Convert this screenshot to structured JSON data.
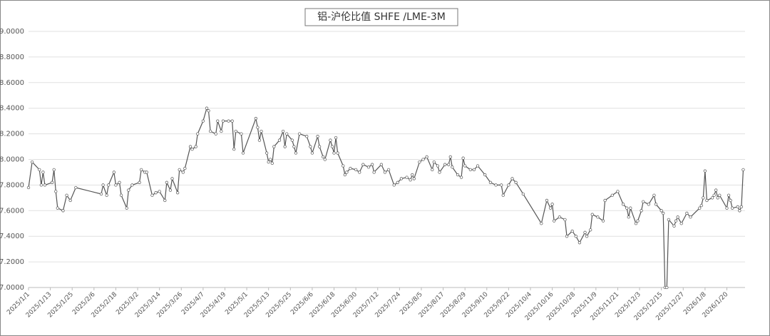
{
  "chart_data": {
    "type": "line",
    "title": "铝-沪伦比值 SHFE /LME-3M",
    "x": [
      "2025/1/1",
      "2025/1/3",
      "2025/1/7",
      "2025/1/8",
      "2025/1/9",
      "2025/1/10",
      "2025/1/14",
      "2025/1/15",
      "2025/1/16",
      "2025/1/17",
      "2025/1/20",
      "2025/1/22",
      "2025/1/24",
      "2025/1/27",
      "2025/2/10",
      "2025/2/11",
      "2025/2/13",
      "2025/2/14",
      "2025/2/17",
      "2025/2/18",
      "2025/2/20",
      "2025/2/21",
      "2025/2/24",
      "2025/2/25",
      "2025/2/27",
      "2025/3/3",
      "2025/3/4",
      "2025/3/6",
      "2025/3/7",
      "2025/3/10",
      "2025/3/12",
      "2025/3/14",
      "2025/3/17",
      "2025/3/18",
      "2025/3/20",
      "2025/3/21",
      "2025/3/24",
      "2025/3/25",
      "2025/3/27",
      "2025/3/28",
      "2025/3/31",
      "2025/4/1",
      "2025/4/3",
      "2025/4/4",
      "2025/4/7",
      "2025/4/9",
      "2025/4/10",
      "2025/4/11",
      "2025/4/14",
      "2025/4/15",
      "2025/4/17",
      "2025/4/18",
      "2025/4/21",
      "2025/4/23",
      "2025/4/24",
      "2025/4/25",
      "2025/4/28",
      "2025/4/29",
      "2025/5/6",
      "2025/5/7",
      "2025/5/8",
      "2025/5/9",
      "2025/5/12",
      "2025/5/13",
      "2025/5/14",
      "2025/5/15",
      "2025/5/16",
      "2025/5/19",
      "2025/5/21",
      "2025/5/22",
      "2025/5/23",
      "2025/5/26",
      "2025/5/27",
      "2025/5/28",
      "2025/5/30",
      "2025/6/3",
      "2025/6/5",
      "2025/6/6",
      "2025/6/9",
      "2025/6/10",
      "2025/6/12",
      "2025/6/13",
      "2025/6/16",
      "2025/6/17",
      "2025/6/18",
      "2025/6/19",
      "2025/6/20",
      "2025/6/23",
      "2025/6/24",
      "2025/6/25",
      "2025/6/27",
      "2025/6/30",
      "2025/7/2",
      "2025/7/4",
      "2025/7/7",
      "2025/7/9",
      "2025/7/10",
      "2025/7/14",
      "2025/7/16",
      "2025/7/18",
      "2025/7/21",
      "2025/7/23",
      "2025/7/25",
      "2025/7/28",
      "2025/7/30",
      "2025/7/31",
      "2025/8/1",
      "2025/8/4",
      "2025/8/6",
      "2025/8/8",
      "2025/8/11",
      "2025/8/12",
      "2025/8/14",
      "2025/8/15",
      "2025/8/18",
      "2025/8/20",
      "2025/8/21",
      "2025/8/22",
      "2025/8/25",
      "2025/8/27",
      "2025/8/28",
      "2025/8/29",
      "2025/9/1",
      "2025/9/3",
      "2025/9/5",
      "2025/9/9",
      "2025/9/12",
      "2025/9/15",
      "2025/9/18",
      "2025/9/19",
      "2025/9/22",
      "2025/9/24",
      "2025/9/26",
      "2025/9/30",
      "2025/10/10",
      "2025/10/13",
      "2025/10/15",
      "2025/10/16",
      "2025/10/17",
      "2025/10/20",
      "2025/10/23",
      "2025/10/24",
      "2025/10/27",
      "2025/10/29",
      "2025/10/31",
      "2025/11/3",
      "2025/11/4",
      "2025/11/6",
      "2025/11/7",
      "2025/11/10",
      "2025/11/13",
      "2025/11/14",
      "2025/11/18",
      "2025/11/21",
      "2025/11/24",
      "2025/11/26",
      "2025/11/27",
      "2025/11/28",
      "2025/12/1",
      "2025/12/2",
      "2025/12/4",
      "2025/12/5",
      "2025/12/8",
      "2025/12/11",
      "2025/12/12",
      "2025/12/15",
      "2025/12/16",
      "2025/12/17",
      "2025/12/18",
      "2025/12/19",
      "2025/12/22",
      "2025/12/23",
      "2025/12/24",
      "2025/12/26",
      "2025/12/29",
      "2025/12/31",
      "2026/1/5",
      "2026/1/6",
      "2026/1/7",
      "2026/1/8",
      "2026/1/9",
      "2026/1/12",
      "2026/1/13",
      "2026/1/14",
      "2026/1/15",
      "2026/1/16",
      "2026/1/20",
      "2026/1/21",
      "2026/1/22",
      "2026/1/23",
      "2026/1/26",
      "2026/1/27",
      "2026/1/28",
      "2026/1/29"
    ],
    "series": [
      {
        "name": "铝-沪伦比值 SHFE /LME-3M",
        "color": "#555555",
        "values": [
          7.78,
          7.98,
          7.92,
          7.8,
          7.9,
          7.8,
          7.82,
          7.92,
          7.75,
          7.62,
          7.6,
          7.72,
          7.68,
          7.78,
          7.73,
          7.8,
          7.72,
          7.8,
          7.9,
          7.8,
          7.82,
          7.72,
          7.62,
          7.76,
          7.8,
          7.82,
          7.92,
          7.9,
          7.9,
          7.72,
          7.74,
          7.75,
          7.68,
          7.82,
          7.76,
          7.85,
          7.74,
          7.92,
          7.9,
          7.93,
          8.1,
          8.08,
          8.1,
          8.2,
          8.3,
          8.4,
          8.38,
          8.22,
          8.2,
          8.3,
          8.22,
          8.3,
          8.3,
          8.3,
          8.08,
          8.22,
          8.2,
          8.05,
          8.32,
          8.25,
          8.15,
          8.22,
          8.05,
          7.98,
          8.0,
          7.97,
          8.1,
          8.15,
          8.22,
          8.1,
          8.2,
          8.15,
          8.1,
          8.05,
          8.2,
          8.18,
          8.1,
          8.05,
          8.18,
          8.1,
          8.02,
          8.0,
          8.15,
          8.1,
          8.05,
          8.17,
          8.05,
          7.95,
          7.88,
          7.9,
          7.93,
          7.92,
          7.9,
          7.96,
          7.94,
          7.96,
          7.9,
          7.96,
          7.9,
          7.92,
          7.8,
          7.82,
          7.85,
          7.86,
          7.84,
          7.88,
          7.85,
          7.98,
          8.0,
          8.02,
          7.92,
          7.98,
          7.95,
          7.9,
          7.96,
          7.96,
          8.02,
          7.94,
          7.88,
          7.86,
          8.01,
          7.95,
          7.92,
          7.92,
          7.95,
          7.88,
          7.82,
          7.8,
          7.8,
          7.72,
          7.8,
          7.85,
          7.82,
          7.73,
          7.5,
          7.68,
          7.62,
          7.65,
          7.52,
          7.55,
          7.53,
          7.4,
          7.44,
          7.4,
          7.35,
          7.43,
          7.4,
          7.45,
          7.57,
          7.55,
          7.52,
          7.68,
          7.72,
          7.75,
          7.65,
          7.62,
          7.55,
          7.62,
          7.5,
          7.52,
          7.6,
          7.67,
          7.65,
          7.72,
          7.65,
          7.6,
          7.58,
          7.0,
          7.0,
          7.53,
          7.48,
          7.52,
          7.55,
          7.5,
          7.58,
          7.55,
          7.62,
          7.64,
          7.7,
          7.91,
          7.68,
          7.7,
          7.72,
          7.76,
          7.7,
          7.72,
          7.62,
          7.72,
          7.68,
          7.62,
          7.63,
          7.6,
          7.63,
          7.92
        ]
      }
    ],
    "xlim": [
      "2025/1/1",
      "2026/1/30"
    ],
    "xticks": [
      "2025/1/1",
      "2025/1/13",
      "2025/1/25",
      "2025/2/6",
      "2025/2/18",
      "2025/3/2",
      "2025/3/14",
      "2025/3/26",
      "2025/4/7",
      "2025/4/19",
      "2025/5/1",
      "2025/5/13",
      "2025/5/25",
      "2025/6/6",
      "2025/6/18",
      "2025/6/30",
      "2025/7/12",
      "2025/7/24",
      "2025/8/5",
      "2025/8/17",
      "2025/8/29",
      "2025/9/10",
      "2025/9/22",
      "2025/10/4",
      "2025/10/16",
      "2025/10/28",
      "2025/11/9",
      "2025/11/21",
      "2025/12/3",
      "2025/12/15",
      "2025/12/27",
      "2026/1/8",
      "2026/1/20"
    ],
    "ylim": [
      7,
      9
    ],
    "yticks": [
      {
        "value": 7,
        "label": "7.0000"
      },
      {
        "value": 7.2,
        "label": "7.2000"
      },
      {
        "value": 7.4,
        "label": "7.4000"
      },
      {
        "value": 7.6,
        "label": "7.6000"
      },
      {
        "value": 7.8,
        "label": "7.8000"
      },
      {
        "value": 8,
        "label": "8.0000"
      },
      {
        "value": 8.2,
        "label": "8.2000"
      },
      {
        "value": 8.4,
        "label": "8.4000"
      },
      {
        "value": 8.6,
        "label": "8.6000"
      },
      {
        "value": 8.8,
        "label": "8.8000"
      },
      {
        "value": 9,
        "label": "9.0000"
      }
    ],
    "grid": true
  }
}
